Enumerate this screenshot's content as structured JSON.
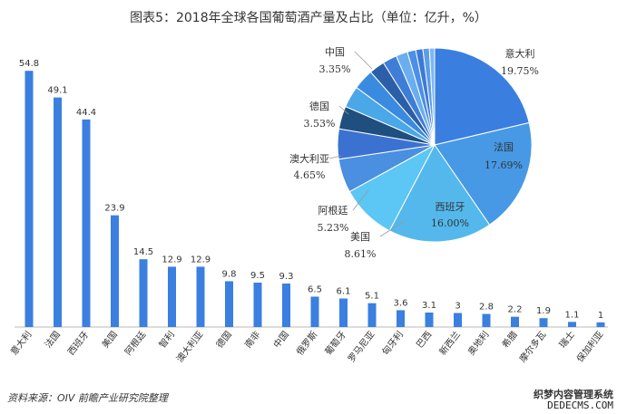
{
  "title": "图表5：2018年全球各国葡萄酒产量及占比（单位：亿升，%）",
  "source": "资料来源：OIV  前瞻产业研究院整理",
  "watermark": {
    "site_name": "织梦内容管理系统",
    "site_url": "DEDECMS.COM"
  },
  "colors": {
    "bar": "#3b7fe0",
    "pie": [
      "#3a7ee0",
      "#4799e6",
      "#54b8ec",
      "#5cc6f4",
      "#4a8fe0",
      "#3b72d2",
      "#1f4f7e",
      "#4aa7e8",
      "#3a8be0",
      "#2b5fa8",
      "#3f7ed6",
      "#6aaef0",
      "#4c8fe6",
      "#3e79d8",
      "#5a9fe8",
      "#7cb7f0"
    ],
    "axis": "#bbbbbb",
    "text": "#333333"
  },
  "chart_data": [
    {
      "type": "bar",
      "categories": [
        "意大利",
        "法国",
        "西班牙",
        "美国",
        "阿根廷",
        "智利",
        "澳大利亚",
        "德国",
        "南非",
        "中国",
        "俄罗斯",
        "葡萄牙",
        "罗马尼亚",
        "匈牙利",
        "巴西",
        "新西兰",
        "奥地利",
        "希腊",
        "摩尔多瓦",
        "瑞士",
        "保加利亚"
      ],
      "values": [
        54.8,
        49.1,
        44.4,
        23.9,
        14.5,
        12.9,
        12.9,
        9.8,
        9.5,
        9.3,
        6.5,
        6.1,
        5.1,
        3.6,
        3.1,
        3,
        2.8,
        2.2,
        1.9,
        1.1,
        1
      ],
      "ylim": [
        0,
        56
      ],
      "xlabel": "",
      "ylabel": ""
    },
    {
      "type": "pie",
      "labels": [
        "意大利",
        "法国",
        "西班牙",
        "美国",
        "阿根廷",
        "澳大利亚",
        "德国",
        "中国"
      ],
      "values": [
        19.75,
        17.69,
        16.0,
        8.61,
        5.23,
        4.65,
        3.53,
        3.35
      ],
      "value_labels": [
        "19.75%",
        "17.69%",
        "16.00%",
        "8.61%",
        "5.23%",
        "4.65%",
        "3.53%",
        "3.35%"
      ],
      "other_slices": [
        3.2,
        2.4,
        2.2,
        1.8,
        1.3,
        1.1,
        1.0,
        0.8
      ]
    }
  ]
}
